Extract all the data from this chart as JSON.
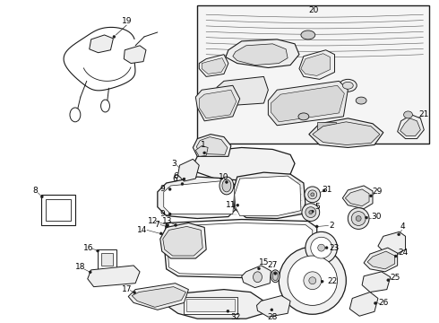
{
  "bg_color": "#ffffff",
  "line_color": "#1a1a1a",
  "fig_width": 4.9,
  "fig_height": 3.6,
  "dpi": 100,
  "label_fontsize": 6.5,
  "label_color": "#000000"
}
